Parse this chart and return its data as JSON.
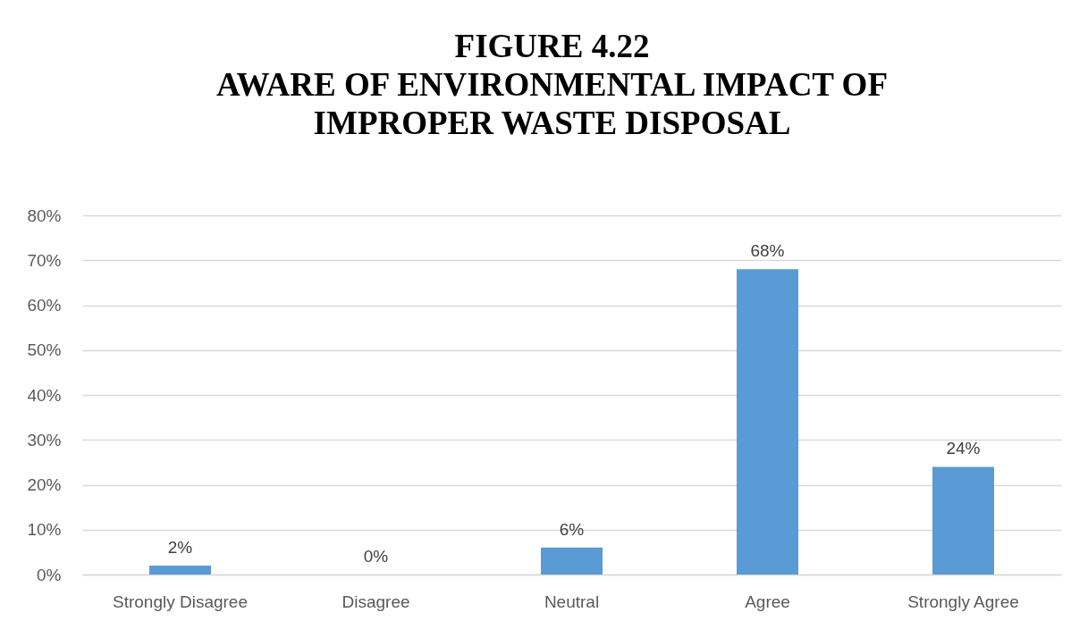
{
  "chart_data": {
    "type": "bar",
    "title": "FIGURE 4.22\nAWARE OF ENVIRONMENTAL IMPACT OF\nIMPROPER WASTE DISPOSAL",
    "categories": [
      "Strongly Disagree",
      "Disagree",
      "Neutral",
      "Agree",
      "Strongly Agree"
    ],
    "values": [
      2,
      0,
      6,
      68,
      24
    ],
    "color": "#5b9bd5",
    "value_labels": [
      "2%",
      "0%",
      "6%",
      "68%",
      "24%"
    ],
    "ylim": [
      0,
      80
    ],
    "yticks": [
      {
        "value": 0,
        "label": "0%"
      },
      {
        "value": 10,
        "label": "10%"
      },
      {
        "value": 20,
        "label": "20%"
      },
      {
        "value": 30,
        "label": "30%"
      },
      {
        "value": 40,
        "label": "40%"
      },
      {
        "value": 50,
        "label": "50%"
      },
      {
        "value": 60,
        "label": "60%"
      },
      {
        "value": 70,
        "label": "70%"
      },
      {
        "value": 80,
        "label": "80%"
      }
    ],
    "grid": "y"
  }
}
